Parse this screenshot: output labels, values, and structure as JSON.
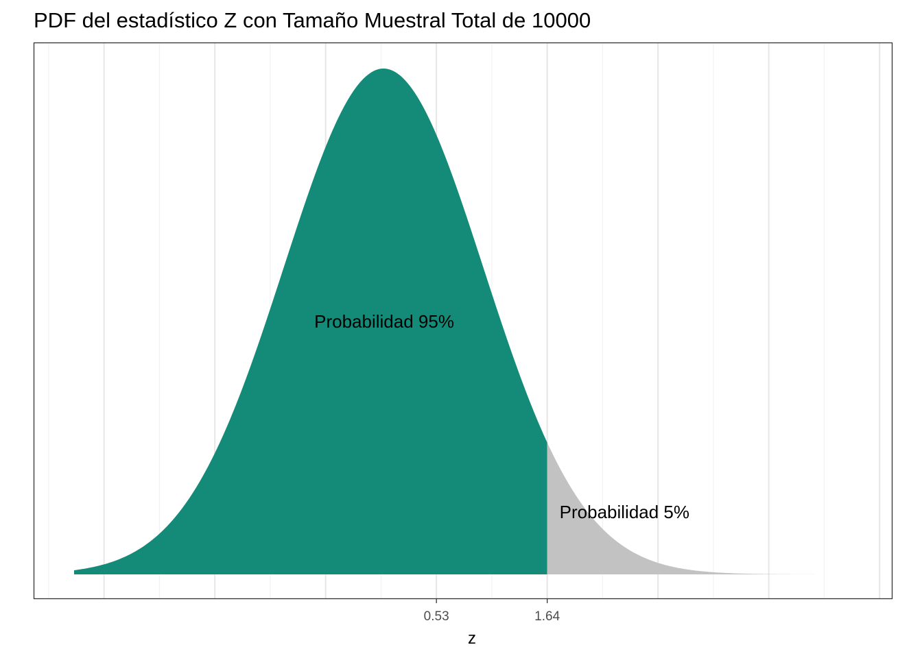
{
  "chart_data": {
    "type": "area",
    "title": "PDF del estadístico Z con Tamaño Muestral Total de 10000",
    "xlabel": "z",
    "ylabel": "",
    "x_ticks": [
      0.53,
      1.64
    ],
    "x_tick_labels": [
      "0.53",
      "1.64"
    ],
    "xlim": [
      -3.5,
      4.5
    ],
    "ylim": [
      0,
      0.4
    ],
    "grid": true,
    "density": {
      "distribution": "normal",
      "mean": 0,
      "sd": 1,
      "x_range": [
        -3.1,
        4.9
      ]
    },
    "regions": [
      {
        "name": "Probabilidad 95%",
        "from": -3.1,
        "to": 1.64,
        "color": "#148B78",
        "annotation": "Probabilidad 95%"
      },
      {
        "name": "Probabilidad 5%",
        "from": 1.64,
        "to": 4.9,
        "color": "#C2C2C2",
        "annotation": "Probabilidad 5%"
      }
    ]
  },
  "colors": {
    "grid_major": "#e6e6e6",
    "grid_minor": "#f2f2f2",
    "panel_border": "#333333",
    "tick": "#333333"
  }
}
